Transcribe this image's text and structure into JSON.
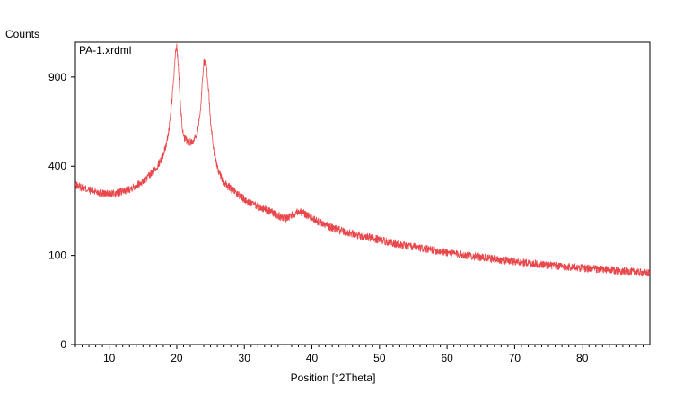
{
  "chart_data": {
    "type": "line",
    "file_label": "PA-1.xrdml",
    "ylabel": "Counts",
    "xlabel": "Position [°2Theta]",
    "xlim": [
      5,
      90
    ],
    "ylim": [
      0,
      1150
    ],
    "y_scale": "sqrt",
    "x_ticks": [
      10,
      20,
      30,
      40,
      50,
      60,
      70,
      80
    ],
    "y_ticks": [
      0,
      100,
      400,
      900
    ],
    "legend": "none",
    "grid": false,
    "series": [
      {
        "color": "#e8474b",
        "x": [
          5,
          6,
          7,
          8,
          9,
          10,
          11,
          12,
          13,
          14,
          15,
          15.5,
          16,
          16.5,
          17,
          17.5,
          18,
          18.5,
          19,
          19.3,
          19.6,
          19.8,
          20.0,
          20.2,
          20.5,
          20.8,
          21,
          21.5,
          22,
          22.5,
          23,
          23.5,
          23.8,
          24.0,
          24.3,
          24.7,
          25,
          25.5,
          26,
          26.5,
          27,
          28,
          29,
          30,
          31,
          32,
          33,
          34,
          35,
          36,
          37,
          38,
          39,
          40,
          41,
          42,
          43,
          44,
          45,
          46,
          47,
          48,
          49,
          50,
          52,
          54,
          56,
          58,
          60,
          62,
          64,
          66,
          68,
          70,
          72,
          74,
          76,
          78,
          80,
          82,
          84,
          86,
          88,
          90
        ],
        "y": [
          320,
          310,
          300,
          295,
          288,
          285,
          287,
          295,
          305,
          318,
          335,
          345,
          360,
          375,
          395,
          420,
          455,
          510,
          620,
          760,
          920,
          1060,
          1120,
          1000,
          760,
          600,
          540,
          520,
          515,
          525,
          560,
          680,
          880,
          1010,
          1000,
          820,
          620,
          470,
          395,
          355,
          330,
          305,
          285,
          265,
          250,
          240,
          230,
          220,
          210,
          200,
          210,
          225,
          215,
          200,
          190,
          180,
          172,
          165,
          160,
          155,
          150,
          146,
          142,
          138,
          130,
          123,
          117,
          112,
          107,
          102,
          98,
          94,
          90,
          87,
          84,
          81,
          78,
          76,
          74,
          72,
          70,
          68,
          66,
          64
        ]
      }
    ]
  }
}
